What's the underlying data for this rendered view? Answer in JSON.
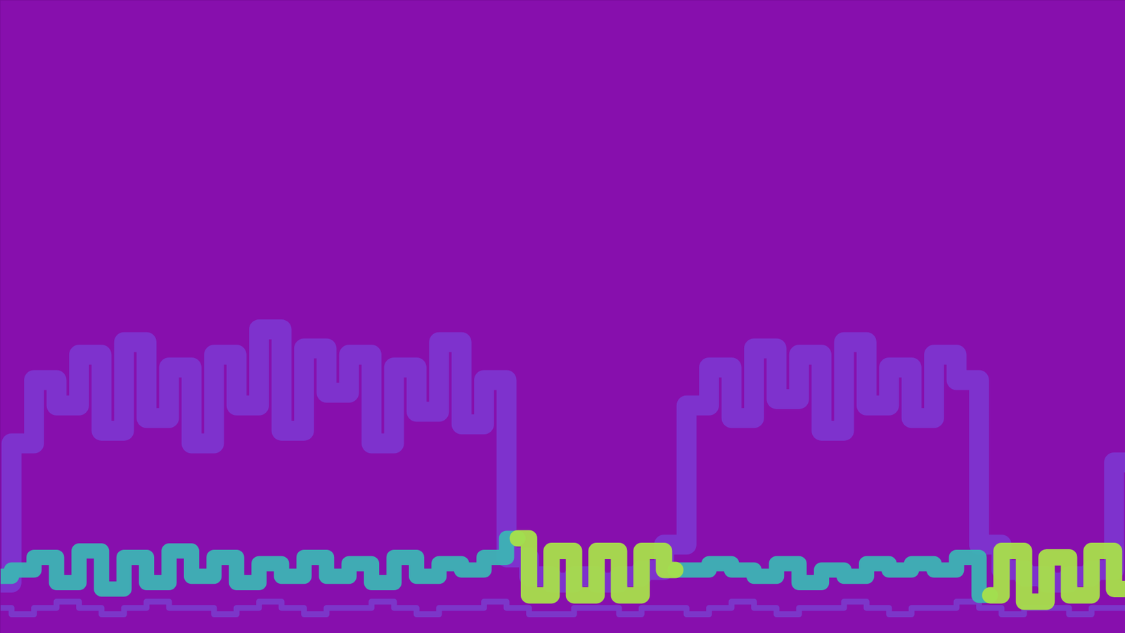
{
  "chart_data": {
    "type": "line",
    "tick_labels": false,
    "grid": false,
    "xlim": [
      0,
      100
    ],
    "ylim": [
      0,
      100
    ],
    "x": [
      0,
      2,
      4,
      6,
      8,
      10,
      12,
      14,
      16,
      18,
      20,
      22,
      24,
      26,
      28,
      30,
      32,
      34,
      36,
      38,
      40,
      42,
      44,
      46,
      48,
      50,
      52,
      54,
      56,
      58,
      60,
      62,
      64,
      66,
      68,
      70,
      72,
      74,
      76,
      78,
      80,
      82,
      84,
      86,
      88,
      90,
      92,
      94,
      96,
      98,
      100
    ],
    "series": [
      {
        "color": "#7b3fd8",
        "line_style": "solid",
        "values": [
          8,
          30,
          40,
          36,
          44,
          32,
          46,
          34,
          42,
          30,
          44,
          36,
          48,
          32,
          45,
          38,
          44,
          30,
          42,
          35,
          46,
          33,
          40,
          12,
          9,
          8,
          9,
          8,
          9,
          10,
          14,
          36,
          42,
          34,
          45,
          37,
          44,
          32,
          46,
          36,
          42,
          34,
          44,
          40,
          14,
          10,
          9,
          8,
          9,
          10,
          27
        ]
      },
      {
        "color": "#7450dc",
        "line_style": "solid",
        "values": [
          4,
          3,
          4,
          5,
          4,
          3,
          4,
          5,
          4,
          4,
          3,
          4,
          5,
          4,
          3,
          4,
          4,
          5,
          4,
          3,
          4,
          4,
          5,
          4,
          3,
          3,
          4,
          4,
          3,
          4,
          4,
          3,
          4,
          5,
          4,
          3,
          4,
          4,
          5,
          4,
          3,
          4,
          4,
          5,
          4,
          3,
          4,
          4,
          3,
          4,
          4
        ]
      },
      {
        "color": "#3cb4b4",
        "line_style": "solid",
        "values": [
          9,
          10,
          12,
          8,
          13,
          7,
          12,
          8,
          13,
          9,
          12,
          8,
          11,
          9,
          12,
          9,
          11,
          8,
          12,
          9,
          11,
          10,
          12,
          15,
          null,
          null,
          null,
          null,
          null,
          null,
          10,
          10,
          11,
          10,
          9,
          11,
          8,
          10,
          9,
          11,
          10,
          11,
          10,
          12,
          6,
          null,
          null,
          null,
          null,
          null,
          null
        ]
      },
      {
        "color": "#a8e04a",
        "line_style": "solid",
        "values": [
          null,
          null,
          null,
          null,
          null,
          null,
          null,
          null,
          null,
          null,
          null,
          null,
          null,
          null,
          null,
          null,
          null,
          null,
          null,
          null,
          null,
          null,
          null,
          15,
          6,
          13,
          6,
          13,
          6,
          13,
          10,
          null,
          null,
          null,
          null,
          null,
          null,
          null,
          null,
          null,
          null,
          null,
          null,
          null,
          6,
          13,
          5,
          12,
          6,
          13,
          7
        ]
      }
    ]
  }
}
